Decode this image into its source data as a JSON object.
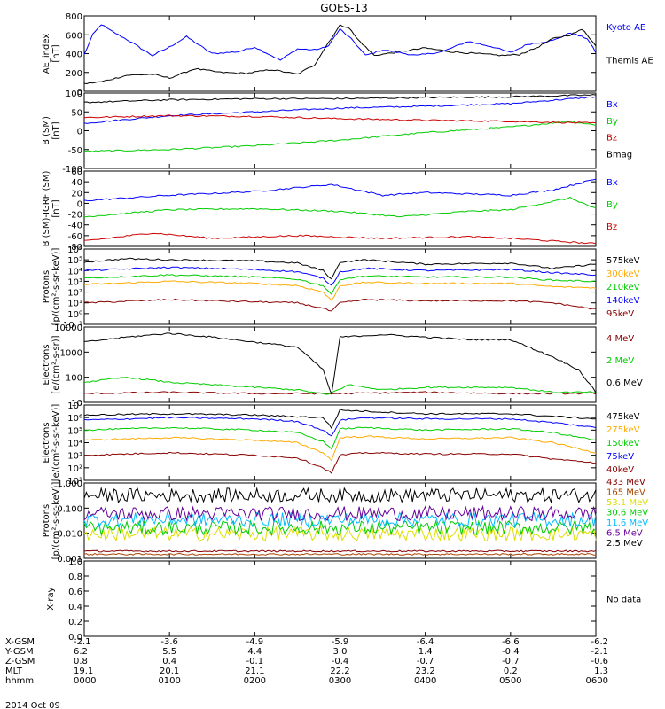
{
  "title": "GOES-13",
  "date_label": "2014 Oct 09",
  "no_data_label": "No data",
  "colors": {
    "blue": "#0000ff",
    "black": "#000000",
    "green": "#00cc00",
    "red": "#cc0000",
    "orange": "#ffaa00",
    "cyan": "#00bbff",
    "yellow": "#dddd00",
    "purple": "#660099",
    "darkred": "#880000",
    "brown": "#aa4400"
  },
  "ephemeris": {
    "row_labels": [
      "X-GSM",
      "Y-GSM",
      "Z-GSM",
      "MLT",
      "hhmm"
    ],
    "columns": [
      [
        "-2.1",
        "6.2",
        "0.8",
        "19.1",
        "0000"
      ],
      [
        "-3.6",
        "5.5",
        "0.4",
        "20.1",
        "0100"
      ],
      [
        "-4.9",
        "4.4",
        "-0.1",
        "21.1",
        "0200"
      ],
      [
        "-5.9",
        "3.0",
        "-0.4",
        "22.2",
        "0300"
      ],
      [
        "-6.4",
        "1.4",
        "-0.7",
        "23.2",
        "0400"
      ],
      [
        "-6.6",
        "-0.4",
        "-0.7",
        "0.2",
        "0500"
      ],
      [
        "-6.2",
        "-2.1",
        "-0.6",
        "1.3",
        "0600"
      ]
    ]
  },
  "chart_data": [
    {
      "type": "line",
      "ylabel": "AE_index\n[nT]",
      "ylim": [
        0,
        800
      ],
      "yticks": [
        "0",
        "200",
        "400",
        "600",
        "800"
      ],
      "series": [
        {
          "name": "Kyoto AE",
          "color": "blue",
          "x": [
            0,
            0.1,
            0.2,
            0.3,
            0.5,
            0.8,
            1.0,
            1.2,
            1.5,
            1.8,
            2.0,
            2.3,
            2.5,
            2.7,
            2.85,
            3.0,
            3.15,
            3.3,
            3.5,
            3.7,
            3.9,
            4.2,
            4.5,
            4.8,
            5.0,
            5.2,
            5.5,
            5.7,
            5.9,
            6.0
          ],
          "y": [
            390,
            600,
            710,
            650,
            550,
            380,
            470,
            580,
            400,
            420,
            470,
            330,
            450,
            440,
            470,
            660,
            540,
            380,
            440,
            410,
            380,
            420,
            530,
            470,
            410,
            500,
            540,
            620,
            560,
            410
          ]
        },
        {
          "name": "Themis AE",
          "color": "black",
          "x": [
            0,
            0.2,
            0.5,
            0.8,
            1.0,
            1.3,
            1.6,
            1.9,
            2.2,
            2.5,
            2.7,
            2.85,
            3.0,
            3.1,
            3.2,
            3.4,
            3.7,
            4.0,
            4.3,
            4.6,
            4.9,
            5.1,
            5.3,
            5.5,
            5.7,
            5.85,
            6.0
          ],
          "y": [
            80,
            100,
            170,
            180,
            140,
            240,
            200,
            190,
            230,
            180,
            280,
            500,
            700,
            680,
            560,
            380,
            420,
            460,
            420,
            400,
            380,
            390,
            460,
            560,
            600,
            660,
            480
          ]
        }
      ]
    },
    {
      "type": "line",
      "ylabel": "B (SM)\n[nT]",
      "ylim": [
        -100,
        100
      ],
      "yticks": [
        "-100",
        "-50",
        "0",
        "50",
        "100"
      ],
      "series": [
        {
          "name": "Bx",
          "color": "blue",
          "x": [
            0,
            1,
            2,
            3,
            4,
            5,
            6
          ],
          "y": [
            20,
            40,
            50,
            60,
            65,
            72,
            90
          ]
        },
        {
          "name": "By",
          "color": "green",
          "x": [
            0,
            1,
            2,
            3,
            4,
            5,
            5.7,
            6
          ],
          "y": [
            -55,
            -50,
            -40,
            -25,
            -5,
            10,
            25,
            15
          ]
        },
        {
          "name": "Bz",
          "color": "red",
          "x": [
            0,
            1,
            2,
            3,
            4,
            5,
            6
          ],
          "y": [
            35,
            40,
            38,
            32,
            28,
            25,
            20
          ]
        },
        {
          "name": "Bmag",
          "color": "black",
          "x": [
            0,
            1,
            2,
            3,
            4,
            5,
            6
          ],
          "y": [
            75,
            82,
            85,
            85,
            88,
            90,
            95
          ]
        }
      ]
    },
    {
      "type": "line",
      "ylabel": "B (SM)-IGRF (SM)\n[nT]",
      "ylim": [
        -80,
        60
      ],
      "yticks": [
        "-80",
        "-60",
        "-40",
        "-20",
        "0",
        "20",
        "40",
        "60"
      ],
      "series": [
        {
          "name": "Bx",
          "color": "blue",
          "x": [
            0,
            1,
            2,
            2.9,
            3.5,
            4,
            5,
            5.5,
            6
          ],
          "y": [
            5,
            15,
            22,
            35,
            15,
            20,
            15,
            25,
            45
          ]
        },
        {
          "name": "By",
          "color": "green",
          "x": [
            0,
            1,
            2,
            3,
            3.7,
            4.5,
            5,
            5.7,
            6
          ],
          "y": [
            -25,
            -12,
            -10,
            -15,
            -25,
            -15,
            -12,
            10,
            -10
          ]
        },
        {
          "name": "Bz",
          "color": "red",
          "x": [
            0,
            0.8,
            1.5,
            2.5,
            3.5,
            4.5,
            5,
            6
          ],
          "y": [
            -70,
            -55,
            -65,
            -60,
            -65,
            -62,
            -65,
            -75
          ]
        }
      ]
    },
    {
      "type": "line",
      "ylabel": "Protons\n[p/(cm²-s-sr-keV)]",
      "yscale": "log",
      "ylim": [
        -1,
        6
      ],
      "yticks": [
        "10⁻¹",
        "10⁰",
        "10¹",
        "10²",
        "10³",
        "10⁴",
        "10⁵",
        "10⁶"
      ],
      "series": [
        {
          "name": "575keV",
          "color": "black",
          "x": [
            0,
            0.5,
            1,
            2,
            2.5,
            2.8,
            2.9,
            3.0,
            3.3,
            4,
            5,
            5.5,
            6
          ],
          "y": [
            4.8,
            5.1,
            5.0,
            4.9,
            4.7,
            4.0,
            3.2,
            4.8,
            5.0,
            4.6,
            4.7,
            4.2,
            4.6
          ]
        },
        {
          "name": "300keV",
          "color": "orange",
          "x": [
            0,
            1,
            2,
            2.5,
            2.8,
            2.9,
            3.0,
            3.3,
            4,
            5,
            5.5,
            6
          ],
          "y": [
            2.7,
            3.0,
            2.8,
            2.6,
            2.0,
            1.2,
            2.6,
            2.9,
            2.8,
            2.8,
            2.5,
            2.4
          ]
        },
        {
          "name": "210keV",
          "color": "green",
          "x": [
            0,
            1,
            2,
            2.5,
            2.8,
            2.9,
            3.0,
            3.3,
            4,
            5,
            5.5,
            6
          ],
          "y": [
            3.3,
            3.6,
            3.4,
            3.2,
            2.6,
            1.8,
            3.2,
            3.5,
            3.4,
            3.4,
            3.1,
            3.0
          ]
        },
        {
          "name": "140keV",
          "color": "blue",
          "x": [
            0,
            1,
            2,
            2.5,
            2.8,
            2.9,
            3.0,
            3.3,
            4,
            5,
            5.5,
            6
          ],
          "y": [
            4.0,
            4.3,
            4.1,
            3.9,
            3.3,
            2.6,
            3.9,
            4.2,
            4.0,
            4.1,
            3.8,
            3.6
          ]
        },
        {
          "name": "95keV",
          "color": "darkred",
          "x": [
            0,
            1,
            2,
            2.5,
            2.8,
            2.9,
            3.0,
            3.3,
            4,
            5,
            5.5,
            6
          ],
          "y": [
            1.0,
            1.3,
            1.1,
            1.0,
            0.5,
            0.2,
            1.0,
            1.3,
            1.2,
            1.2,
            1.0,
            0.4
          ]
        }
      ]
    },
    {
      "type": "line",
      "ylabel": "Electrons\n[e/(cm²-s-sr)]",
      "yscale": "log",
      "ylim": [
        0.7,
        3.7
      ],
      "yticks": [
        "10",
        "100",
        "1000",
        "10000"
      ],
      "series": [
        {
          "name": "4 MeV",
          "color": "darkred",
          "x": [
            0,
            1,
            2,
            3,
            4,
            5,
            6
          ],
          "y": [
            1.05,
            1.1,
            1.05,
            1.05,
            1.1,
            1.05,
            1.05
          ]
        },
        {
          "name": "2 MeV",
          "color": "green",
          "x": [
            0,
            0.5,
            1,
            1.5,
            2,
            2.5,
            2.85,
            3.1,
            3.5,
            4,
            5,
            5.5,
            6
          ],
          "y": [
            1.5,
            1.7,
            1.5,
            1.4,
            1.3,
            1.2,
            1.0,
            1.4,
            1.2,
            1.3,
            1.3,
            1.1,
            1.1
          ]
        },
        {
          "name": "0.6 MeV",
          "color": "black",
          "x": [
            0,
            0.5,
            1,
            1.5,
            2,
            2.5,
            2.8,
            2.9,
            3.0,
            3.5,
            4,
            4.5,
            5,
            5.5,
            5.8,
            6
          ],
          "y": [
            3.1,
            3.3,
            3.45,
            3.3,
            3.1,
            2.9,
            2.0,
            1.0,
            3.3,
            3.4,
            3.3,
            3.2,
            3.2,
            2.5,
            2.0,
            1.1
          ]
        }
      ]
    },
    {
      "type": "line",
      "ylabel": "Electrons\n[e/(cm²-s-sr-keV)]",
      "yscale": "log",
      "ylim": [
        1,
        7
      ],
      "yticks": [
        "10¹",
        "10²",
        "10³",
        "10⁴",
        "10⁵",
        "10⁶",
        "10⁷"
      ],
      "series": [
        {
          "name": "475keV",
          "color": "black",
          "x": [
            0,
            1,
            2,
            2.8,
            2.9,
            3.0,
            3.3,
            4,
            5,
            5.5,
            6
          ],
          "y": [
            6.2,
            6.3,
            6.2,
            6.0,
            5.2,
            6.6,
            6.5,
            6.3,
            6.3,
            6.1,
            5.9
          ]
        },
        {
          "name": "275keV",
          "color": "orange",
          "x": [
            0,
            1,
            2,
            2.5,
            2.8,
            2.9,
            3.0,
            3.3,
            4,
            5,
            5.5,
            6
          ],
          "y": [
            4.2,
            4.4,
            4.2,
            4.0,
            3.2,
            2.6,
            4.4,
            4.5,
            4.3,
            4.4,
            4.0,
            3.2
          ]
        },
        {
          "name": "150keV",
          "color": "green",
          "x": [
            0,
            1,
            2,
            2.5,
            2.8,
            2.9,
            3.0,
            3.3,
            4,
            5,
            5.5,
            6
          ],
          "y": [
            5.0,
            5.2,
            5.0,
            4.8,
            4.1,
            3.5,
            5.1,
            5.2,
            5.0,
            5.1,
            4.8,
            4.2
          ]
        },
        {
          "name": "75keV",
          "color": "blue",
          "x": [
            0,
            1,
            2,
            2.5,
            2.8,
            2.9,
            3.0,
            3.3,
            4,
            5,
            5.5,
            6
          ],
          "y": [
            5.8,
            6.0,
            5.9,
            5.7,
            5.0,
            4.5,
            5.8,
            6.0,
            5.9,
            5.9,
            5.6,
            5.2
          ]
        },
        {
          "name": "40keV",
          "color": "darkred",
          "x": [
            0,
            1,
            2,
            2.5,
            2.8,
            2.9,
            3.0,
            3.3,
            4,
            5,
            5.5,
            6
          ],
          "y": [
            3.0,
            3.2,
            3.0,
            2.8,
            2.0,
            1.6,
            3.0,
            3.2,
            3.1,
            3.1,
            2.7,
            2.4
          ]
        }
      ]
    },
    {
      "type": "line",
      "ylabel": "Protons\n[p/(cm²-s-sr-keV)]",
      "yscale": "log",
      "ylim": [
        -3.1,
        0.6
      ],
      "yticks": [
        "0.001",
        "0.010",
        "0.100",
        "1.000"
      ],
      "series": [
        {
          "name": "433 MeV",
          "color": "darkred",
          "x": [
            0,
            6
          ],
          "y": [
            -2.75,
            -2.75
          ]
        },
        {
          "name": "165 MeV",
          "color": "brown",
          "x": [
            0,
            6
          ],
          "y": [
            -2.9,
            -2.9
          ]
        },
        {
          "name": "53.1 MeV",
          "color": "yellow",
          "x": [
            0,
            6
          ],
          "y": [
            -1.9,
            -1.9
          ]
        },
        {
          "name": "30.6 MeV",
          "color": "green",
          "x": [
            0,
            6
          ],
          "y": [
            -1.6,
            -1.6
          ]
        },
        {
          "name": "11.6 MeV",
          "color": "cyan",
          "x": [
            0,
            6
          ],
          "y": [
            -1.2,
            -1.2
          ]
        },
        {
          "name": "6.5 MeV",
          "color": "purple",
          "x": [
            0,
            6
          ],
          "y": [
            -0.9,
            -0.9
          ]
        },
        {
          "name": "2.5 MeV",
          "color": "black",
          "x": [
            0,
            6
          ],
          "y": [
            0.0,
            0.0
          ]
        }
      ]
    },
    {
      "type": "line",
      "ylabel": "X-ray",
      "ylim": [
        0,
        1
      ],
      "yticks": [
        "0.0",
        "0.2",
        "0.4",
        "0.6",
        "0.8",
        "1.0"
      ],
      "series": []
    }
  ]
}
